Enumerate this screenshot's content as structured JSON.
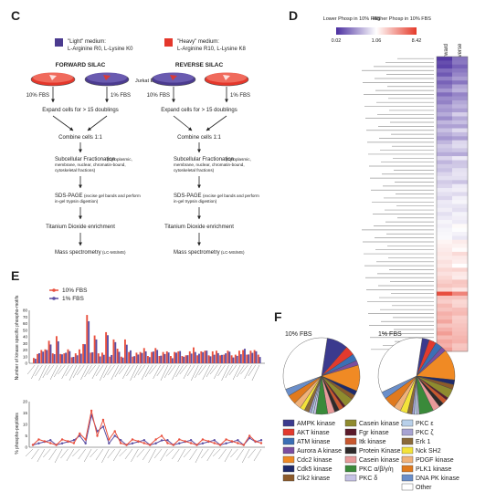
{
  "panel_c": {
    "letter": "C",
    "legend_light_title": "\"Light\" medium:",
    "legend_light_detail": "L-Arginine R0, L-Lysine K0",
    "legend_heavy_title": "\"Heavy\" medium:",
    "legend_heavy_detail": "L-Arginine R10, L-Lysine K8",
    "forward_title": "FORWARD SILAC",
    "reverse_title": "REVERSE SILAC",
    "cell_line": "Jurkat E6",
    "label_10fbs": "10% FBS",
    "label_1fbs": "1% FBS",
    "step_expand": "Expand cells for > 15 doublings",
    "step_combine": "Combine cells  1:1",
    "step_frac_title": "Subcellular Fractionation",
    "step_frac_detail1": "(Cytoplasmic,",
    "step_frac_detail2": "membrane, nuclear, chromatin-bound,",
    "step_frac_detail3": "cytoskeletal fractions)",
    "step_sds_title": "SDS-PAGE",
    "step_sds_detail1": "(excise gel bands and perform",
    "step_sds_detail2": "in-gel trypsin digestion)",
    "step_tio2": "Titanium Dioxide enrichment",
    "step_ms_title": "Mass spectrometry",
    "step_ms_detail": "(LC-MS/MS)",
    "colors": {
      "light": "#4b3b8f",
      "heavy": "#e4372b",
      "dish_bg": "#ffffff"
    }
  },
  "panel_d": {
    "letter": "D",
    "scale_low_label": "Lower Phosp in 10% FBS",
    "scale_high_label": "Higher Phosp in 10% FBS",
    "scale_ticks": [
      "0.02",
      "1.06",
      "8.42"
    ],
    "col_forward": "Forward",
    "col_reverse": "Reverse",
    "colors": {
      "low": "#4b2fa0",
      "mid": "#ffffff",
      "high": "#e53a2a"
    },
    "rows": [
      0.95,
      0.85,
      0.9,
      0.7,
      0.8,
      0.6,
      0.75,
      0.65,
      0.5,
      0.7,
      0.55,
      0.6,
      0.45,
      0.5,
      0.4,
      0.55,
      0.35,
      0.45,
      0.3,
      0.4,
      0.5,
      0.35,
      0.25,
      0.3,
      0.4,
      0.2,
      0.35,
      0.25,
      0.3,
      0.2,
      0.15,
      0.25,
      0.2,
      0.1,
      0.15,
      0.2,
      0.1,
      0.12,
      0.08,
      0.15,
      0.1,
      0.05,
      0.08,
      0.05,
      0.04,
      0.03,
      -0.05,
      -0.08,
      -0.1,
      -0.12,
      -0.1,
      -0.15,
      -0.12,
      -0.2,
      -0.15,
      -0.2,
      -0.25,
      -0.3,
      -0.2,
      -0.9,
      -0.3,
      -0.25,
      -0.35,
      -0.3,
      -0.4,
      -0.35,
      -0.45,
      -0.3,
      -0.4,
      -0.5,
      -0.35,
      -0.45,
      -0.4,
      -0.5
    ]
  },
  "panel_e": {
    "letter": "E",
    "legend": [
      {
        "name": "10% FBS",
        "color": "#e9503e"
      },
      {
        "name": "1% FBS",
        "color": "#5b4ea3"
      }
    ],
    "top_ylabel": "Number of kinase specific phospho-motifs",
    "bottom_ylabel": "% phospho-peptides",
    "top_yticks": [
      "0",
      "10",
      "20",
      "30",
      "40",
      "50",
      "60",
      "70",
      "80"
    ],
    "bottom_yticks": [
      "0",
      "5",
      "10",
      "15",
      "20"
    ]
  },
  "panel_f": {
    "letter": "F",
    "pie1_title": "10% FBS",
    "pie2_title": "1% FBS",
    "legend": [
      {
        "name": "AMPK kinase",
        "color": "#3b3a8e"
      },
      {
        "name": "AKT kinase",
        "color": "#e23a2e"
      },
      {
        "name": "ATM kinase",
        "color": "#3b6fb5"
      },
      {
        "name": "Aurora A kinase",
        "color": "#7b4ea0"
      },
      {
        "name": "Cdc2 kinase",
        "color": "#f08a24"
      },
      {
        "name": "Cdk5 kinase",
        "color": "#1f2a6b"
      },
      {
        "name": "Clk2 kinase",
        "color": "#8c5a2a"
      },
      {
        "name": "Casein kinase 2",
        "color": "#8f8b2e"
      },
      {
        "name": "Fgr kinase",
        "color": "#5a1a2a"
      },
      {
        "name": "Itk kinase",
        "color": "#c8572e"
      },
      {
        "name": "Protein Kinase A",
        "color": "#2e2a2a"
      },
      {
        "name": "Casein kinase 1",
        "color": "#e89a9a"
      },
      {
        "name": "PKC α/β/γ/η",
        "color": "#3a8a3a"
      },
      {
        "name": "PKC δ",
        "color": "#c5c2e4"
      },
      {
        "name": "PKC ε",
        "color": "#b8d0ea"
      },
      {
        "name": "PKC ζ",
        "color": "#a7a3d3"
      },
      {
        "name": "Erk 1",
        "color": "#8a6a3a"
      },
      {
        "name": "Nck SH2",
        "color": "#f3e33a"
      },
      {
        "name": "PDGF kinase",
        "color": "#f0b27a"
      },
      {
        "name": "PLK1 kinase",
        "color": "#e07a1e"
      },
      {
        "name": "DNA PK kinase",
        "color": "#6a8ec9"
      },
      {
        "name": "Other",
        "color": "#ffffff"
      }
    ],
    "pie1_values": [
      9,
      4,
      3,
      2,
      11,
      2,
      2,
      4,
      1,
      2,
      2,
      3,
      5,
      1,
      1,
      1,
      2,
      2,
      3,
      4,
      3,
      33
    ],
    "pie2_values": [
      3,
      3,
      3,
      2,
      13,
      2,
      2,
      4,
      1,
      2,
      2,
      3,
      6,
      1,
      1,
      1,
      2,
      3,
      3,
      5,
      3,
      34
    ]
  }
}
